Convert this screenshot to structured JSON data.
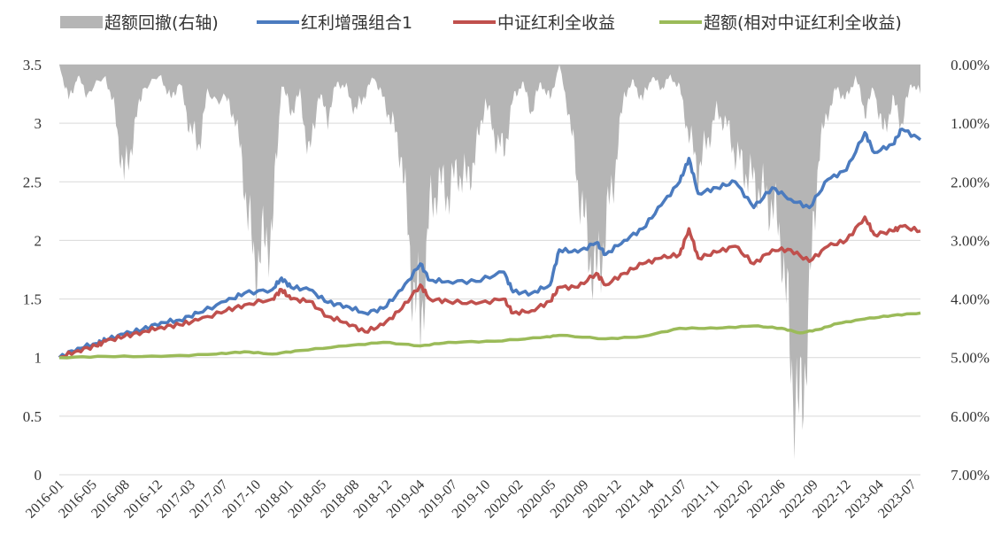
{
  "chart_data": {
    "type": "line",
    "legend_position": "top",
    "grid": "horizontal",
    "legend": [
      {
        "key": "drawdown",
        "label": "超额回撤(右轴)",
        "color": "#b5b5b5",
        "marker": "area"
      },
      {
        "key": "portfolio",
        "label": "红利增强组合1",
        "color": "#4b7bbf",
        "marker": "line"
      },
      {
        "key": "index",
        "label": "中证红利全收益",
        "color": "#c0504d",
        "marker": "line"
      },
      {
        "key": "excess",
        "label": "超额(相对中证红利全收益)",
        "color": "#9bbb59",
        "marker": "line"
      }
    ],
    "y_left": {
      "min": 0,
      "max": 3.5,
      "ticks": [
        "0",
        "0.5",
        "1",
        "1.5",
        "2",
        "2.5",
        "3",
        "3.5"
      ]
    },
    "y_right": {
      "min": 0,
      "max": 0.07,
      "inverted": true,
      "ticks": [
        "0.00%",
        "1.00%",
        "2.00%",
        "3.00%",
        "4.00%",
        "5.00%",
        "6.00%",
        "7.00%"
      ]
    },
    "x_ticks": [
      "2016-01",
      "2016-05",
      "2016-08",
      "2016-12",
      "2017-03",
      "2017-07",
      "2017-10",
      "2018-01",
      "2018-05",
      "2018-08",
      "2018-12",
      "2019-04",
      "2019-07",
      "2019-10",
      "2020-02",
      "2020-05",
      "2020-09",
      "2020-12",
      "2021-04",
      "2021-07",
      "2021-11",
      "2022-02",
      "2022-06",
      "2022-09",
      "2022-12",
      "2023-04",
      "2023-07"
    ],
    "x_range": [
      "2016-01",
      "2023-10"
    ],
    "series": [
      {
        "key": "portfolio",
        "axis": "left",
        "color": "#4b7bbf",
        "points": [
          [
            "2016-01",
            1.0
          ],
          [
            "2016-03",
            1.08
          ],
          [
            "2016-05",
            1.12
          ],
          [
            "2016-06",
            1.15
          ],
          [
            "2016-08",
            1.2
          ],
          [
            "2016-10",
            1.24
          ],
          [
            "2016-12",
            1.3
          ],
          [
            "2017-02",
            1.32
          ],
          [
            "2017-04",
            1.38
          ],
          [
            "2017-07",
            1.48
          ],
          [
            "2017-09",
            1.55
          ],
          [
            "2017-12",
            1.58
          ],
          [
            "2018-01",
            1.68
          ],
          [
            "2018-02",
            1.6
          ],
          [
            "2018-04",
            1.58
          ],
          [
            "2018-06",
            1.47
          ],
          [
            "2018-08",
            1.44
          ],
          [
            "2018-10",
            1.38
          ],
          [
            "2018-12",
            1.42
          ],
          [
            "2019-02",
            1.58
          ],
          [
            "2019-04",
            1.8
          ],
          [
            "2019-05",
            1.66
          ],
          [
            "2019-07",
            1.65
          ],
          [
            "2019-10",
            1.65
          ],
          [
            "2020-01",
            1.73
          ],
          [
            "2020-02",
            1.56
          ],
          [
            "2020-04",
            1.55
          ],
          [
            "2020-06",
            1.62
          ],
          [
            "2020-07",
            1.92
          ],
          [
            "2020-09",
            1.9
          ],
          [
            "2020-11",
            1.98
          ],
          [
            "2020-12",
            1.88
          ],
          [
            "2021-02",
            2.0
          ],
          [
            "2021-04",
            2.1
          ],
          [
            "2021-06",
            2.3
          ],
          [
            "2021-08",
            2.5
          ],
          [
            "2021-09",
            2.7
          ],
          [
            "2021-10",
            2.4
          ],
          [
            "2021-12",
            2.45
          ],
          [
            "2022-02",
            2.5
          ],
          [
            "2022-04",
            2.28
          ],
          [
            "2022-06",
            2.45
          ],
          [
            "2022-08",
            2.35
          ],
          [
            "2022-10",
            2.28
          ],
          [
            "2022-12",
            2.52
          ],
          [
            "2023-02",
            2.6
          ],
          [
            "2023-04",
            2.92
          ],
          [
            "2023-05",
            2.75
          ],
          [
            "2023-07",
            2.82
          ],
          [
            "2023-08",
            2.95
          ],
          [
            "2023-10",
            2.86
          ]
        ]
      },
      {
        "key": "index",
        "axis": "left",
        "color": "#c0504d",
        "points": [
          [
            "2016-01",
            1.0
          ],
          [
            "2016-03",
            1.06
          ],
          [
            "2016-05",
            1.1
          ],
          [
            "2016-06",
            1.14
          ],
          [
            "2016-08",
            1.18
          ],
          [
            "2016-10",
            1.22
          ],
          [
            "2016-12",
            1.26
          ],
          [
            "2017-02",
            1.28
          ],
          [
            "2017-04",
            1.32
          ],
          [
            "2017-07",
            1.4
          ],
          [
            "2017-09",
            1.45
          ],
          [
            "2017-12",
            1.5
          ],
          [
            "2018-01",
            1.58
          ],
          [
            "2018-02",
            1.5
          ],
          [
            "2018-04",
            1.48
          ],
          [
            "2018-06",
            1.35
          ],
          [
            "2018-08",
            1.3
          ],
          [
            "2018-10",
            1.22
          ],
          [
            "2018-12",
            1.28
          ],
          [
            "2019-02",
            1.42
          ],
          [
            "2019-04",
            1.62
          ],
          [
            "2019-05",
            1.5
          ],
          [
            "2019-07",
            1.48
          ],
          [
            "2019-10",
            1.46
          ],
          [
            "2020-01",
            1.5
          ],
          [
            "2020-02",
            1.38
          ],
          [
            "2020-04",
            1.4
          ],
          [
            "2020-06",
            1.48
          ],
          [
            "2020-07",
            1.6
          ],
          [
            "2020-09",
            1.6
          ],
          [
            "2020-11",
            1.72
          ],
          [
            "2020-12",
            1.62
          ],
          [
            "2021-02",
            1.72
          ],
          [
            "2021-04",
            1.8
          ],
          [
            "2021-06",
            1.85
          ],
          [
            "2021-08",
            1.88
          ],
          [
            "2021-09",
            2.1
          ],
          [
            "2021-10",
            1.85
          ],
          [
            "2021-12",
            1.9
          ],
          [
            "2022-02",
            1.95
          ],
          [
            "2022-04",
            1.8
          ],
          [
            "2022-06",
            1.92
          ],
          [
            "2022-08",
            1.92
          ],
          [
            "2022-10",
            1.82
          ],
          [
            "2022-12",
            1.95
          ],
          [
            "2023-02",
            2.0
          ],
          [
            "2023-04",
            2.2
          ],
          [
            "2023-05",
            2.05
          ],
          [
            "2023-07",
            2.08
          ],
          [
            "2023-08",
            2.12
          ],
          [
            "2023-10",
            2.08
          ]
        ]
      },
      {
        "key": "excess",
        "axis": "left",
        "color": "#9bbb59",
        "points": [
          [
            "2016-01",
            1.0
          ],
          [
            "2016-06",
            1.01
          ],
          [
            "2016-12",
            1.01
          ],
          [
            "2017-06",
            1.03
          ],
          [
            "2017-09",
            1.05
          ],
          [
            "2017-12",
            1.03
          ],
          [
            "2018-03",
            1.06
          ],
          [
            "2018-08",
            1.1
          ],
          [
            "2018-12",
            1.13
          ],
          [
            "2019-04",
            1.1
          ],
          [
            "2019-07",
            1.13
          ],
          [
            "2019-12",
            1.14
          ],
          [
            "2020-05",
            1.17
          ],
          [
            "2020-07",
            1.19
          ],
          [
            "2020-12",
            1.16
          ],
          [
            "2021-04",
            1.18
          ],
          [
            "2021-08",
            1.25
          ],
          [
            "2021-12",
            1.25
          ],
          [
            "2022-04",
            1.27
          ],
          [
            "2022-07",
            1.25
          ],
          [
            "2022-09",
            1.21
          ],
          [
            "2022-11",
            1.24
          ],
          [
            "2023-01",
            1.29
          ],
          [
            "2023-04",
            1.33
          ],
          [
            "2023-07",
            1.36
          ],
          [
            "2023-10",
            1.38
          ]
        ]
      }
    ],
    "drawdown": {
      "key": "drawdown",
      "axis": "right",
      "color": "#b5b5b5",
      "points": [
        [
          "2016-01",
          0.0
        ],
        [
          "2016-02",
          0.006
        ],
        [
          "2016-03",
          0.002
        ],
        [
          "2016-04",
          0.005
        ],
        [
          "2016-06",
          0.002
        ],
        [
          "2016-07",
          0.008
        ],
        [
          "2016-08",
          0.0195
        ],
        [
          "2016-09",
          0.012
        ],
        [
          "2016-10",
          0.004
        ],
        [
          "2016-12",
          0.002
        ],
        [
          "2017-01",
          0.006
        ],
        [
          "2017-02",
          0.003
        ],
        [
          "2017-03",
          0.01
        ],
        [
          "2017-04",
          0.014
        ],
        [
          "2017-05",
          0.005
        ],
        [
          "2017-07",
          0.006
        ],
        [
          "2017-08",
          0.009
        ],
        [
          "2017-09",
          0.02
        ],
        [
          "2017-10",
          0.034
        ],
        [
          "2017-11",
          0.031
        ],
        [
          "2017-12",
          0.028
        ],
        [
          "2018-01",
          0.003
        ],
        [
          "2018-02",
          0.008
        ],
        [
          "2018-03",
          0.005
        ],
        [
          "2018-04",
          0.016
        ],
        [
          "2018-05",
          0.005
        ],
        [
          "2018-06",
          0.009
        ],
        [
          "2018-07",
          0.003
        ],
        [
          "2018-08",
          0.004
        ],
        [
          "2018-09",
          0.008
        ],
        [
          "2018-10",
          0.005
        ],
        [
          "2018-11",
          0.002
        ],
        [
          "2018-12",
          0.006
        ],
        [
          "2019-01",
          0.01
        ],
        [
          "2019-02",
          0.016
        ],
        [
          "2019-03",
          0.035
        ],
        [
          "2019-04",
          0.045
        ],
        [
          "2019-05",
          0.025
        ],
        [
          "2019-06",
          0.02
        ],
        [
          "2019-07",
          0.022
        ],
        [
          "2019-08",
          0.018
        ],
        [
          "2019-09",
          0.02
        ],
        [
          "2019-10",
          0.015
        ],
        [
          "2019-11",
          0.006
        ],
        [
          "2019-12",
          0.012
        ],
        [
          "2020-01",
          0.015
        ],
        [
          "2020-02",
          0.006
        ],
        [
          "2020-03",
          0.003
        ],
        [
          "2020-04",
          0.008
        ],
        [
          "2020-05",
          0.003
        ],
        [
          "2020-06",
          0.006
        ],
        [
          "2020-07",
          0.0
        ],
        [
          "2020-08",
          0.008
        ],
        [
          "2020-09",
          0.02
        ],
        [
          "2020-10",
          0.03
        ],
        [
          "2020-11",
          0.037
        ],
        [
          "2020-12",
          0.028
        ],
        [
          "2021-01",
          0.018
        ],
        [
          "2021-02",
          0.005
        ],
        [
          "2021-03",
          0.003
        ],
        [
          "2021-04",
          0.006
        ],
        [
          "2021-05",
          0.002
        ],
        [
          "2021-06",
          0.004
        ],
        [
          "2021-07",
          0.002
        ],
        [
          "2021-08",
          0.004
        ],
        [
          "2021-09",
          0.012
        ],
        [
          "2021-10",
          0.018
        ],
        [
          "2021-11",
          0.013
        ],
        [
          "2021-12",
          0.008
        ],
        [
          "2022-01",
          0.01
        ],
        [
          "2022-02",
          0.015
        ],
        [
          "2022-03",
          0.018
        ],
        [
          "2022-04",
          0.02
        ],
        [
          "2022-05",
          0.022
        ],
        [
          "2022-06",
          0.024
        ],
        [
          "2022-07",
          0.03
        ],
        [
          "2022-08",
          0.05
        ],
        [
          "2022-09",
          0.062
        ],
        [
          "2022-10",
          0.04
        ],
        [
          "2022-11",
          0.015
        ],
        [
          "2022-12",
          0.008
        ],
        [
          "2023-01",
          0.004
        ],
        [
          "2023-02",
          0.006
        ],
        [
          "2023-03",
          0.002
        ],
        [
          "2023-04",
          0.008
        ],
        [
          "2023-05",
          0.004
        ],
        [
          "2023-06",
          0.012
        ],
        [
          "2023-07",
          0.006
        ],
        [
          "2023-08",
          0.01
        ],
        [
          "2023-09",
          0.003
        ],
        [
          "2023-10",
          0.005
        ]
      ]
    }
  }
}
